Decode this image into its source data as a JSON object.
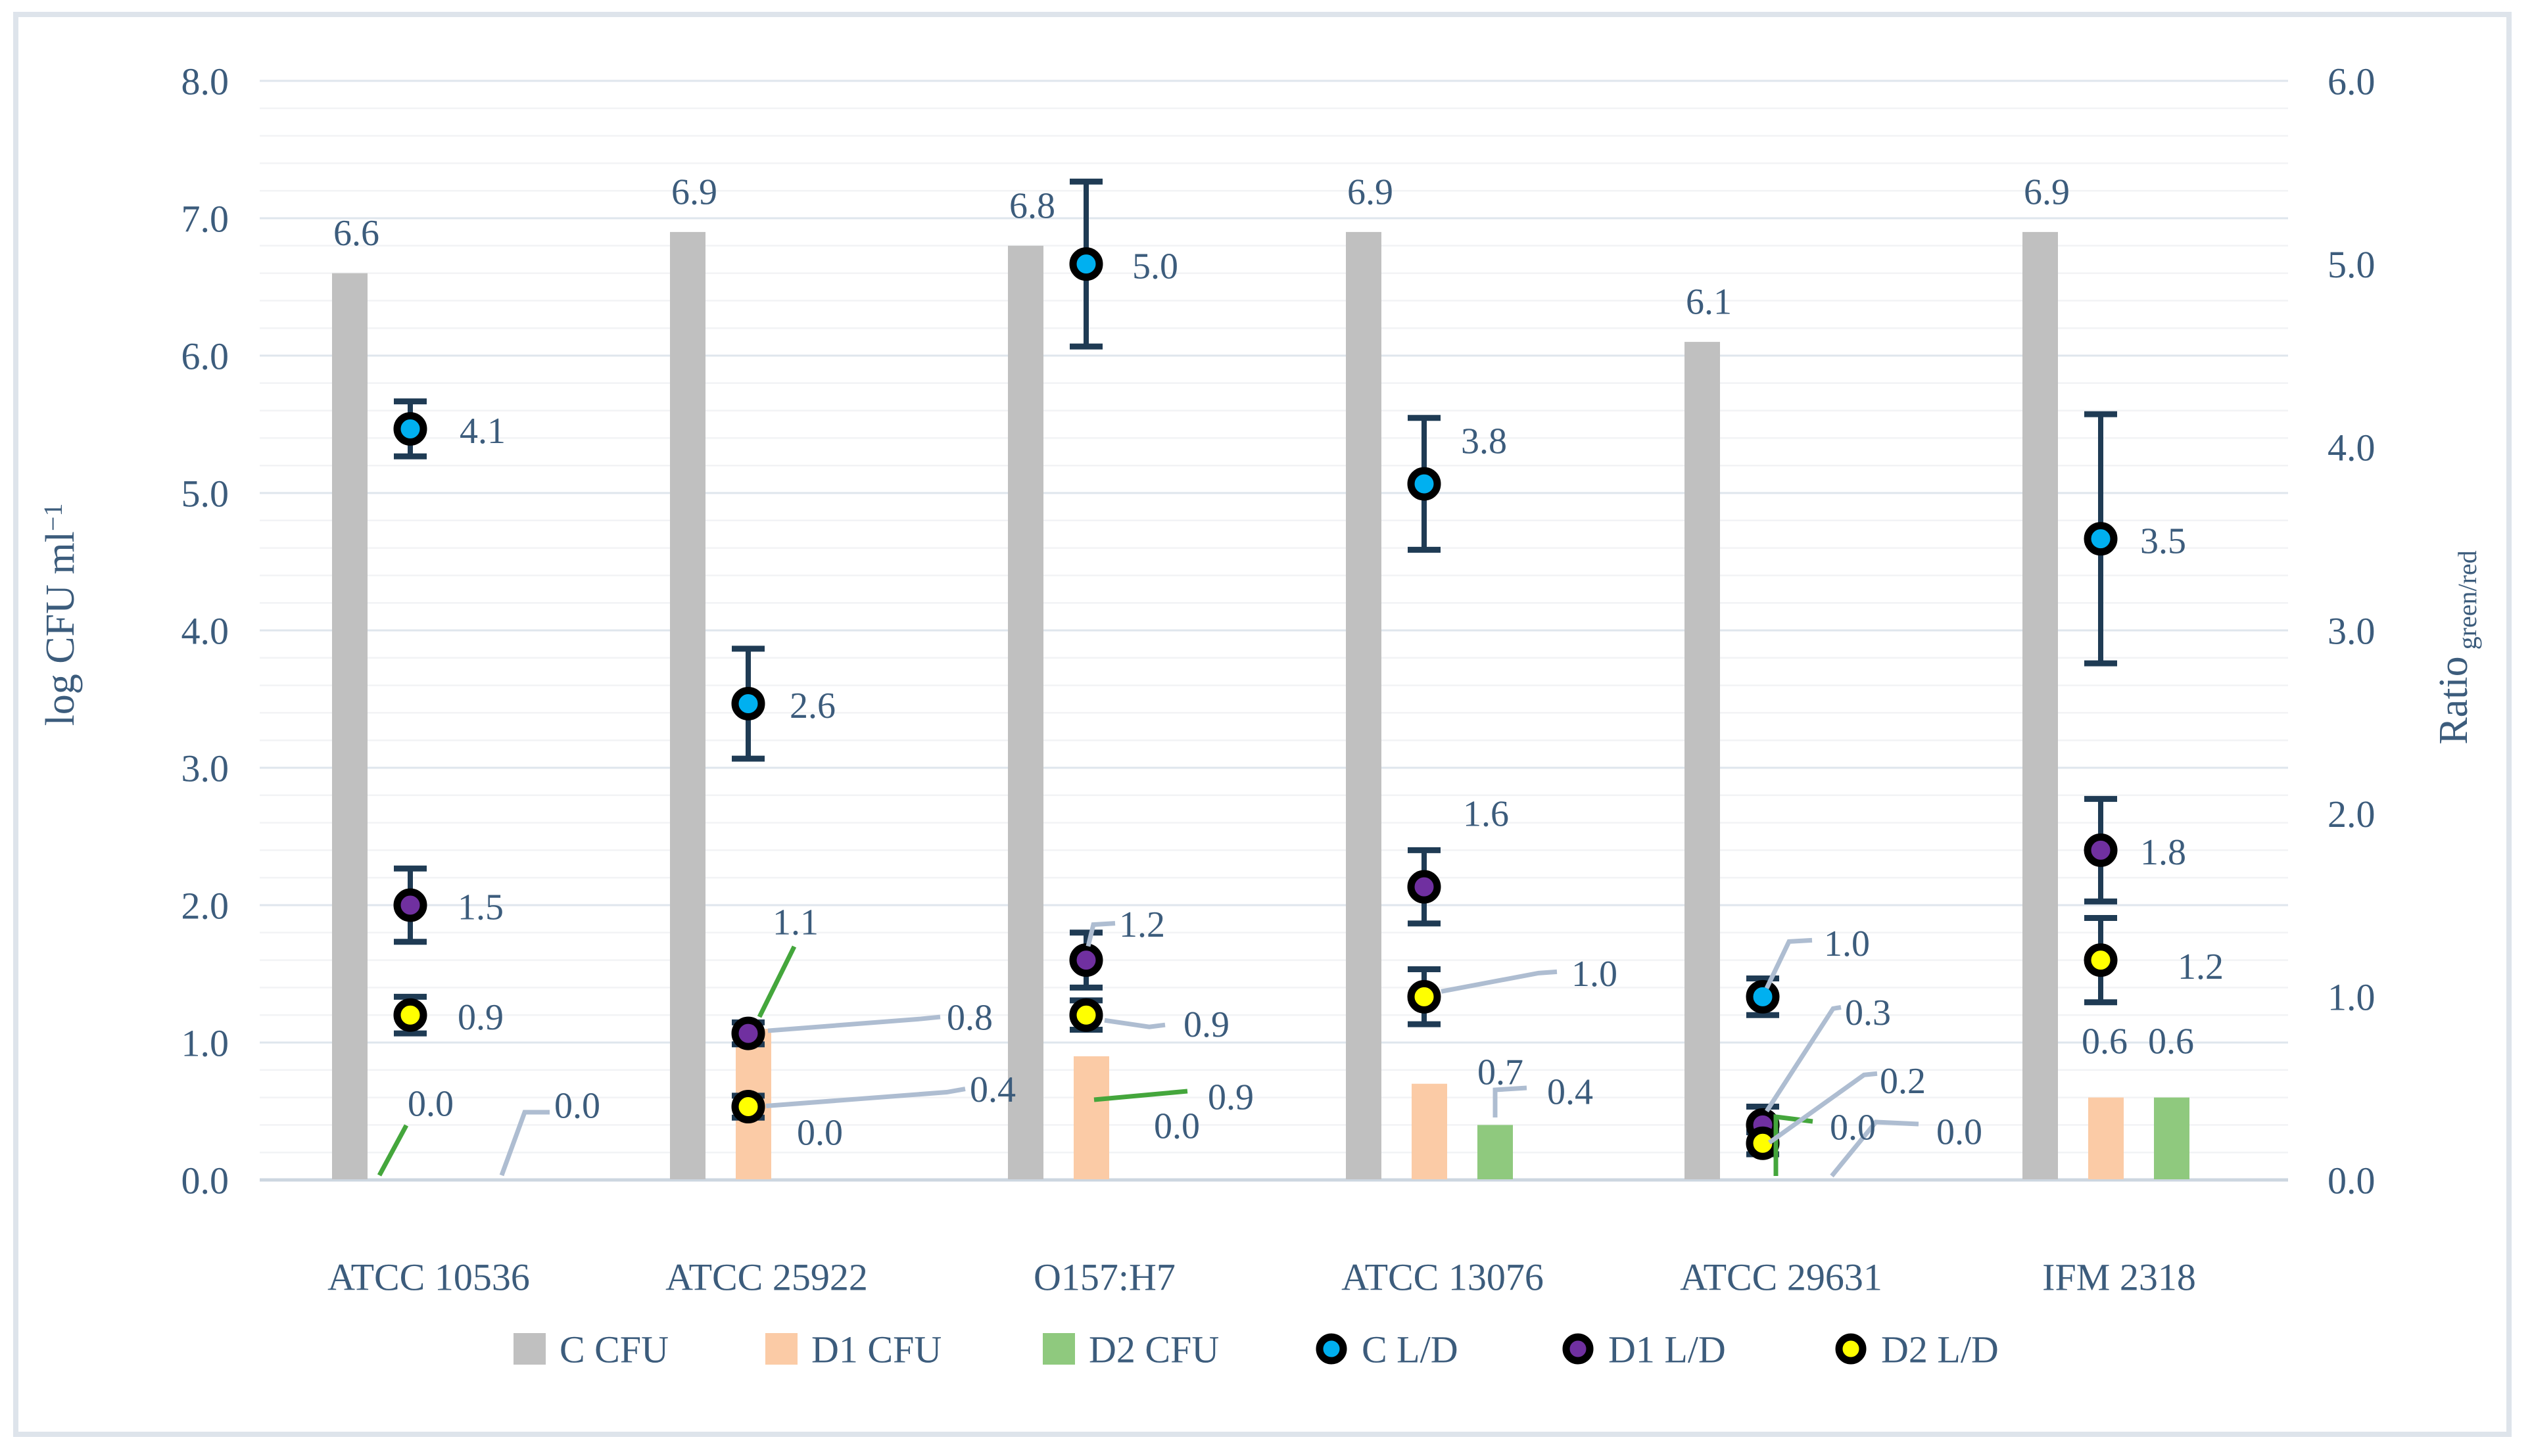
{
  "chart_data": {
    "type": "bar",
    "combo": "clustered column (left axis) + scatter points with error bars (right axis)",
    "categories": [
      "ATCC 10536",
      "ATCC 25922",
      "O157:H7",
      "ATCC 13076",
      "ATCC 29631",
      "IFM 2318"
    ],
    "series": [
      {
        "name": "C CFU",
        "kind": "bar",
        "axis": "left",
        "color": "#C0C0C0",
        "values": [
          6.6,
          6.9,
          6.8,
          6.9,
          6.1,
          6.9
        ],
        "labels": [
          "6.6",
          "6.9",
          "6.8",
          "6.9",
          "6.1",
          "6.9"
        ]
      },
      {
        "name": "D1 CFU",
        "kind": "bar",
        "axis": "left",
        "color": "#FBCBA6",
        "values": [
          0.0,
          1.1,
          0.9,
          0.7,
          0.0,
          0.6
        ],
        "labels": [
          "0.0",
          "1.1",
          "0.9",
          "0.7",
          "0.0",
          "0.6"
        ]
      },
      {
        "name": "D2 CFU",
        "kind": "bar",
        "axis": "left",
        "color": "#8FC97E",
        "values": [
          0.0,
          0.0,
          0.0,
          0.4,
          0.0,
          0.6
        ],
        "labels": [
          "0.0",
          "0.0",
          "0.0",
          "0.4",
          "0.0",
          "0.6"
        ]
      },
      {
        "name": "C L/D",
        "kind": "point",
        "axis": "right",
        "color": "#00B0F0",
        "values": [
          4.1,
          2.6,
          5.0,
          3.8,
          1.0,
          3.5
        ],
        "errors": [
          0.15,
          0.3,
          0.45,
          0.36,
          0.1,
          0.68
        ],
        "labels": [
          "4.1",
          "2.6",
          "5.0",
          "3.8",
          "1.0",
          "3.5"
        ]
      },
      {
        "name": "D1 L/D",
        "kind": "point",
        "axis": "right",
        "color": "#7030A0",
        "values": [
          1.5,
          0.8,
          1.2,
          1.6,
          0.3,
          1.8
        ],
        "errors": [
          0.2,
          0.06,
          0.15,
          0.2,
          0.1,
          0.28
        ],
        "labels": [
          "1.5",
          "0.8",
          "1.2",
          "1.6",
          "0.3",
          "1.8"
        ]
      },
      {
        "name": "D2 L/D",
        "kind": "point",
        "axis": "right",
        "color": "#FFFF00",
        "values": [
          0.9,
          0.4,
          0.9,
          1.0,
          0.2,
          1.2
        ],
        "errors": [
          0.1,
          0.06,
          0.08,
          0.15,
          0.06,
          0.23
        ],
        "labels": [
          "0.9",
          "0.4",
          "0.9",
          "1.0",
          "0.2",
          "1.2"
        ]
      }
    ],
    "left_axis": {
      "title": "log CFU ml",
      "title_superscript": "−1",
      "range": [
        0,
        8
      ],
      "tick_step": 1,
      "ticks": [
        "0.0",
        "1.0",
        "2.0",
        "3.0",
        "4.0",
        "5.0",
        "6.0",
        "7.0",
        "8.0"
      ]
    },
    "right_axis": {
      "title": "Ratio",
      "title_subscript": "green/red",
      "range": [
        0,
        6
      ],
      "tick_step": 1,
      "ticks": [
        "0.0",
        "1.0",
        "2.0",
        "3.0",
        "4.0",
        "5.0",
        "6.0"
      ]
    },
    "legend": [
      "C CFU",
      "D1 CFU",
      "D2 CFU",
      "C L/D",
      "D1 L/D",
      "D2 L/D"
    ],
    "gridlines": {
      "major": "on",
      "minor": "on",
      "minor_step_left": 0.2
    }
  },
  "colors": {
    "text": "#3C5C7C",
    "error_bar": "#1F3B54",
    "marker_ring": "#000000",
    "major_grid": "#DFE6ED",
    "minor_grid": "#F2F3F5",
    "axis_line": "#CCD6E0",
    "frame_border": "#DEE4EB",
    "leader_gray": "#AEBDD1",
    "leader_green": "#44A63C",
    "background": "#FFFFFF"
  }
}
